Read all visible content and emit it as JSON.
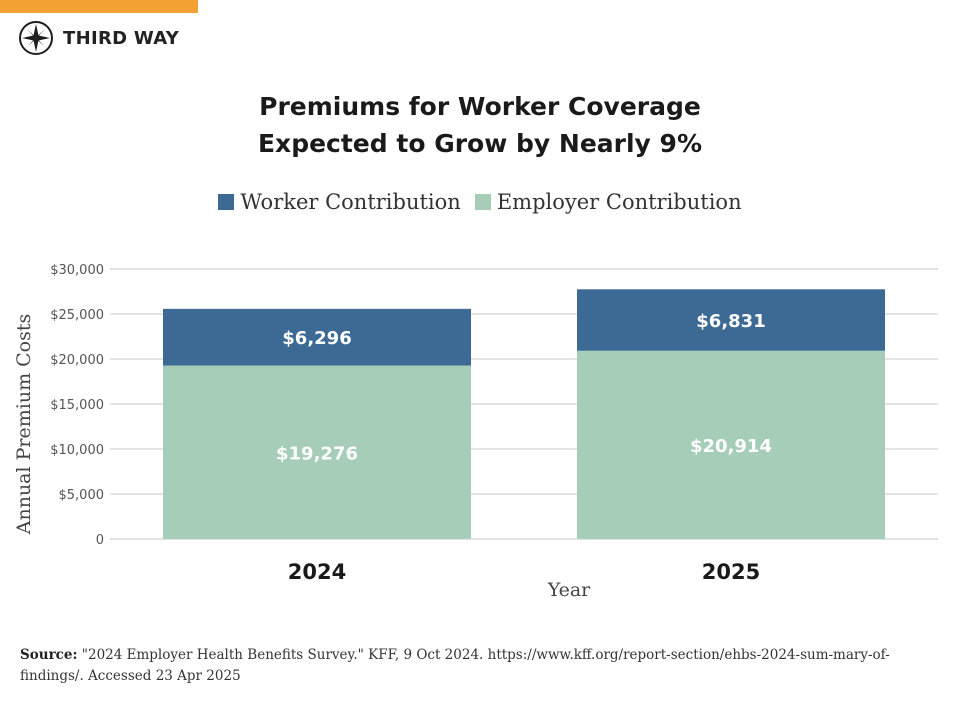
{
  "brand": {
    "name": "THIRD WAY",
    "accent_color": "#f4a234"
  },
  "colors": {
    "worker": "#3d6a95",
    "employer": "#a6cdb8",
    "grid": "#d4d4d4"
  },
  "source": {
    "label": "Source:",
    "text": "\"2024 Employer Health Benefits Survey.\" KFF, 9 Oct 2024. https://www.kff.org/report-section/ehbs-2024-sum-mary-of-findings/. Accessed 23 Apr 2025"
  },
  "chart_data": {
    "type": "bar",
    "stacked": true,
    "title_lines": [
      "Premiums for Worker Coverage",
      "Expected to Grow by Nearly 9%"
    ],
    "categories": [
      "2024",
      "2025"
    ],
    "series": [
      {
        "name": "Worker Contribution",
        "values": [
          6296,
          6831
        ],
        "labels": [
          "$6,296",
          "$6,831"
        ]
      },
      {
        "name": "Employer Contribution",
        "values": [
          19276,
          20914
        ],
        "labels": [
          "$19,276",
          "$20,914"
        ]
      }
    ],
    "xlabel": "Year",
    "ylabel": "Annual Premium Costs",
    "ylim": [
      0,
      30000
    ],
    "yticks": [
      0,
      5000,
      10000,
      15000,
      20000,
      25000,
      30000
    ],
    "ytick_labels": [
      "0",
      "$5,000",
      "$10,000",
      "$15,000",
      "$20,000",
      "$25,000",
      "$30,000"
    ],
    "legend_position": "top-center",
    "grid": true
  }
}
